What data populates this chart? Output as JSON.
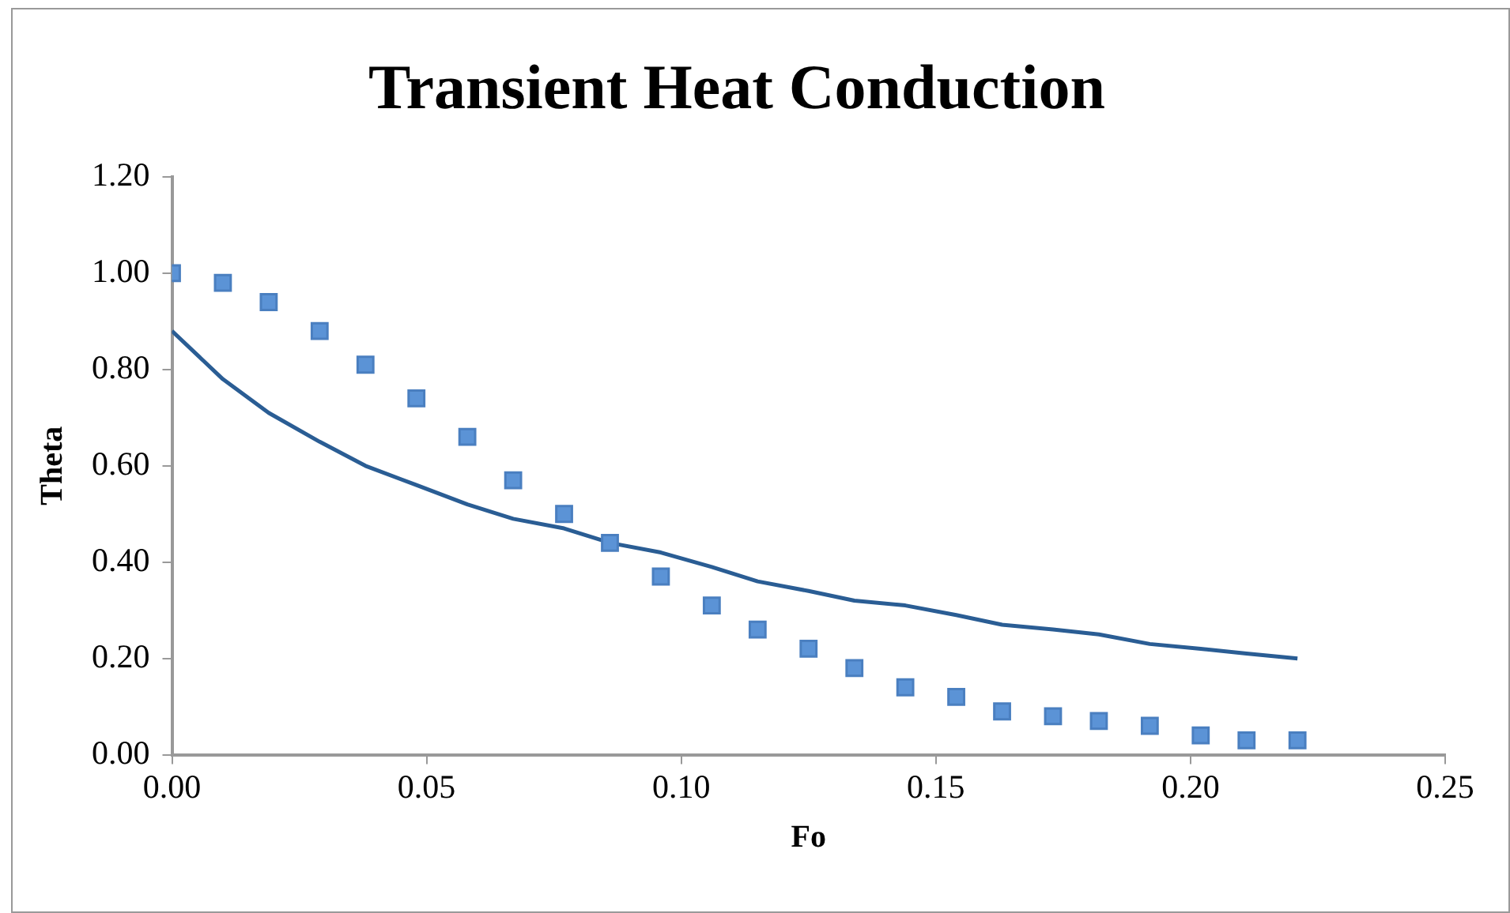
{
  "chart_data": {
    "type": "scatter",
    "title": "Transient Heat Conduction",
    "xlabel": "Fo",
    "ylabel": "Theta",
    "x": [
      0,
      0.01,
      0.019,
      0.029,
      0.038,
      0.048,
      0.058,
      0.067,
      0.077,
      0.086,
      0.096,
      0.106,
      0.115,
      0.125,
      0.134,
      0.144,
      0.154,
      0.163,
      0.173,
      0.182,
      0.192,
      0.202,
      0.211,
      0.221
    ],
    "series": [
      {
        "color": "#5b93d6",
        "marker": "square",
        "values": [
          1.0,
          0.98,
          0.94,
          0.88,
          0.81,
          0.74,
          0.66,
          0.57,
          0.5,
          0.44,
          0.37,
          0.31,
          0.26,
          0.22,
          0.18,
          0.14,
          0.12,
          0.09,
          0.08,
          0.07,
          0.06,
          0.04,
          0.03,
          0.03
        ]
      },
      {
        "type": "line",
        "color": "#2a5d94",
        "marker": "none",
        "values": [
          0.88,
          0.78,
          0.71,
          0.65,
          0.6,
          0.56,
          0.52,
          0.49,
          0.47,
          0.44,
          0.42,
          0.39,
          0.36,
          0.34,
          0.32,
          0.31,
          0.29,
          0.27,
          0.26,
          0.25,
          0.23,
          0.22,
          0.21,
          0.2
        ]
      }
    ],
    "xlim": [
      0,
      0.25
    ],
    "xticks": [
      {
        "value": 0,
        "label": "0.00"
      },
      {
        "value": 0.05,
        "label": "0.05"
      },
      {
        "value": 0.1,
        "label": "0.10"
      },
      {
        "value": 0.15,
        "label": "0.15"
      },
      {
        "value": 0.2,
        "label": "0.20"
      },
      {
        "value": 0.25,
        "label": "0.25"
      }
    ],
    "ylim": [
      0,
      1.2
    ],
    "yticks": [
      {
        "value": 0,
        "label": "0.00"
      },
      {
        "value": 0.2,
        "label": "0.20"
      },
      {
        "value": 0.4,
        "label": "0.40"
      },
      {
        "value": 0.6,
        "label": "0.60"
      },
      {
        "value": 0.8,
        "label": "0.80"
      },
      {
        "value": 1,
        "label": "1.00"
      },
      {
        "value": 1.2,
        "label": "1.20"
      }
    ],
    "grid": false,
    "legend": false
  }
}
